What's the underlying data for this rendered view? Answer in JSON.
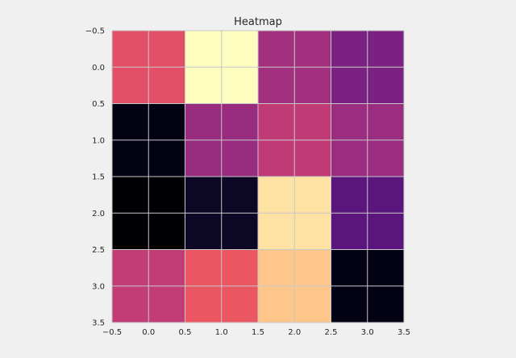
{
  "chart_data": {
    "type": "heatmap",
    "title": "Heatmap",
    "xlabel": "",
    "ylabel": "",
    "xlim": [
      -0.5,
      3.5
    ],
    "ylim": [
      3.5,
      -0.5
    ],
    "xticks": [
      "−0.5",
      "0.0",
      "0.5",
      "1.0",
      "1.5",
      "2.0",
      "2.5",
      "3.0",
      "3.5"
    ],
    "yticks": [
      "−0.5",
      "0.0",
      "0.5",
      "1.0",
      "1.5",
      "2.0",
      "2.5",
      "3.0",
      "3.5"
    ],
    "xtick_values": [
      -0.5,
      0.0,
      0.5,
      1.0,
      1.5,
      2.0,
      2.5,
      3.0,
      3.5
    ],
    "ytick_values": [
      -0.5,
      0.0,
      0.5,
      1.0,
      1.5,
      2.0,
      2.5,
      3.0,
      3.5
    ],
    "grid": true,
    "colormap": "magma",
    "rows": 4,
    "cols": 4,
    "cells": [
      [
        {
          "row": 0,
          "col": 0,
          "color": "#e34f66"
        },
        {
          "row": 0,
          "col": 1,
          "color": "#fcfdbf"
        },
        {
          "row": 0,
          "col": 2,
          "color": "#a3307e"
        },
        {
          "row": 0,
          "col": 3,
          "color": "#7a2181"
        }
      ],
      [
        {
          "row": 1,
          "col": 0,
          "color": "#030212"
        },
        {
          "row": 1,
          "col": 1,
          "color": "#982d80"
        },
        {
          "row": 1,
          "col": 2,
          "color": "#c03a76"
        },
        {
          "row": 1,
          "col": 3,
          "color": "#9a2d7f"
        }
      ],
      [
        {
          "row": 2,
          "col": 0,
          "color": "#000004"
        },
        {
          "row": 2,
          "col": 1,
          "color": "#0b0724"
        },
        {
          "row": 2,
          "col": 2,
          "color": "#fde2a3"
        },
        {
          "row": 2,
          "col": 3,
          "color": "#5b167e"
        }
      ],
      [
        {
          "row": 3,
          "col": 0,
          "color": "#c23c75"
        },
        {
          "row": 3,
          "col": 1,
          "color": "#ea5661"
        },
        {
          "row": 3,
          "col": 2,
          "color": "#fec68a"
        },
        {
          "row": 3,
          "col": 3,
          "color": "#030214"
        }
      ]
    ],
    "colors": {
      "background": "#f0f0f0",
      "grid": "#c8c8c8",
      "text": "#262626"
    }
  }
}
